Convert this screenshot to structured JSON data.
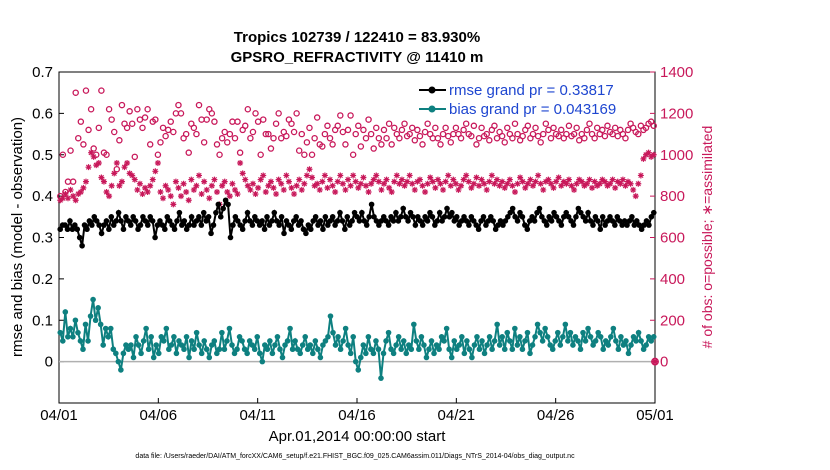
{
  "chart_data": {
    "type": "line",
    "title": "Tropics 102739 / 122410 = 83.930%",
    "subtitle": "GPSRO_REFRACTIVITY @ 11410 m",
    "xlabel": "Apr.01,2014 00:00:00 start",
    "ylabel": "rmse and bias (model - observation)",
    "y2label": "# of obs: o=possible; ∗=assimilated",
    "footer": "data file: /Users/raeder/DAI/ATM_forcXX/CAM6_setup/f.e21.FHIST_BGC.f09_025.CAM6assim.011/Diags_NTrS_2014-04/obs_diag_output.nc",
    "xlim": [
      0,
      30
    ],
    "ylim": [
      -0.1,
      0.7
    ],
    "y2lim": [
      -200,
      1400
    ],
    "xticks": [
      0,
      5,
      10,
      15,
      20,
      25,
      30
    ],
    "xticklabels": [
      "04/01",
      "04/06",
      "04/11",
      "04/16",
      "04/21",
      "04/26",
      "05/01"
    ],
    "yticks": [
      0,
      0.1,
      0.2,
      0.3,
      0.4,
      0.5,
      0.6,
      0.7
    ],
    "yticklabels": [
      "0",
      "0.1",
      "0.2",
      "0.3",
      "0.4",
      "0.5",
      "0.6",
      "0.7"
    ],
    "y2ticks": [
      0,
      200,
      400,
      600,
      800,
      1000,
      1200,
      1400
    ],
    "y2ticklabels": [
      "0",
      "200",
      "400",
      "600",
      "800",
      "1000",
      "1200",
      "1400"
    ],
    "zero_line": 0,
    "series": [
      {
        "name": "rmse grand pr = 0.33817",
        "axis": "left",
        "color": "#000000",
        "marker": "filled-circle",
        "values": [
          0.32,
          0.33,
          0.33,
          0.32,
          0.34,
          0.32,
          0.33,
          0.32,
          0.3,
          0.28,
          0.33,
          0.32,
          0.34,
          0.33,
          0.35,
          0.34,
          0.33,
          0.31,
          0.33,
          0.34,
          0.32,
          0.35,
          0.33,
          0.34,
          0.36,
          0.34,
          0.32,
          0.35,
          0.34,
          0.33,
          0.35,
          0.34,
          0.32,
          0.33,
          0.35,
          0.34,
          0.33,
          0.35,
          0.34,
          0.3,
          0.33,
          0.34,
          0.33,
          0.32,
          0.35,
          0.34,
          0.33,
          0.32,
          0.34,
          0.36,
          0.33,
          0.34,
          0.32,
          0.33,
          0.35,
          0.33,
          0.34,
          0.35,
          0.33,
          0.36,
          0.34,
          0.35,
          0.31,
          0.33,
          0.36,
          0.38,
          0.35,
          0.37,
          0.39,
          0.38,
          0.3,
          0.33,
          0.35,
          0.34,
          0.33,
          0.32,
          0.34,
          0.36,
          0.34,
          0.33,
          0.35,
          0.34,
          0.33,
          0.34,
          0.32,
          0.35,
          0.33,
          0.34,
          0.36,
          0.34,
          0.33,
          0.35,
          0.31,
          0.34,
          0.33,
          0.32,
          0.34,
          0.35,
          0.33,
          0.34,
          0.32,
          0.31,
          0.33,
          0.32,
          0.34,
          0.35,
          0.33,
          0.34,
          0.32,
          0.35,
          0.33,
          0.34,
          0.35,
          0.33,
          0.34,
          0.36,
          0.34,
          0.32,
          0.35,
          0.33,
          0.34,
          0.36,
          0.35,
          0.34,
          0.36,
          0.34,
          0.33,
          0.35,
          0.38,
          0.35,
          0.34,
          0.33,
          0.34,
          0.35,
          0.34,
          0.33,
          0.35,
          0.34,
          0.36,
          0.34,
          0.35,
          0.37,
          0.35,
          0.34,
          0.36,
          0.35,
          0.33,
          0.35,
          0.34,
          0.33,
          0.35,
          0.34,
          0.36,
          0.35,
          0.33,
          0.34,
          0.36,
          0.34,
          0.35,
          0.37,
          0.35,
          0.36,
          0.34,
          0.35,
          0.33,
          0.34,
          0.35,
          0.34,
          0.33,
          0.35,
          0.34,
          0.33,
          0.32,
          0.34,
          0.35,
          0.33,
          0.34,
          0.35,
          0.34,
          0.32,
          0.33,
          0.34,
          0.33,
          0.34,
          0.35,
          0.36,
          0.37,
          0.35,
          0.34,
          0.36,
          0.35,
          0.33,
          0.32,
          0.34,
          0.35,
          0.34,
          0.36,
          0.37,
          0.35,
          0.34,
          0.33,
          0.35,
          0.34,
          0.36,
          0.35,
          0.34,
          0.33,
          0.35,
          0.36,
          0.35,
          0.34,
          0.33,
          0.35,
          0.37,
          0.36,
          0.35,
          0.34,
          0.36,
          0.34,
          0.33,
          0.35,
          0.34,
          0.32,
          0.35,
          0.33,
          0.34,
          0.35,
          0.34,
          0.33,
          0.35,
          0.34,
          0.33,
          0.34,
          0.33,
          0.34,
          0.35,
          0.33,
          0.34,
          0.33,
          0.32,
          0.33,
          0.34,
          0.33,
          0.35,
          0.36
        ]
      },
      {
        "name": "bias grand pr = 0.043169",
        "axis": "left",
        "color": "#0e8080",
        "marker": "filled-circle",
        "values": [
          0.07,
          0.05,
          0.12,
          0.06,
          0.08,
          0.06,
          0.1,
          0.07,
          0.05,
          0.03,
          0.09,
          0.05,
          0.11,
          0.15,
          0.1,
          0.13,
          0.09,
          0.04,
          0.08,
          0.06,
          0.08,
          0.03,
          0.02,
          0.0,
          -0.02,
          0.02,
          0.04,
          0.03,
          0.04,
          0.01,
          0.06,
          0.04,
          0.02,
          0.05,
          0.08,
          0.03,
          0.06,
          0.01,
          0.04,
          0.02,
          0.06,
          0.05,
          0.08,
          0.03,
          0.04,
          0.06,
          0.02,
          0.05,
          0.04,
          0.03,
          0.06,
          0.01,
          0.05,
          0.03,
          0.07,
          0.04,
          0.02,
          0.05,
          0.03,
          0.01,
          0.04,
          0.05,
          0.02,
          0.03,
          0.07,
          0.03,
          0.05,
          0.08,
          0.04,
          0.02,
          0.03,
          0.06,
          0.05,
          0.03,
          0.02,
          0.05,
          0.04,
          0.03,
          0.06,
          0.02,
          0.0,
          0.04,
          0.03,
          0.05,
          0.02,
          0.04,
          0.06,
          0.03,
          0.01,
          0.04,
          0.05,
          0.08,
          0.03,
          0.05,
          0.03,
          0.02,
          0.04,
          0.06,
          0.03,
          0.04,
          0.02,
          0.05,
          0.03,
          0.01,
          0.04,
          0.05,
          0.06,
          0.11,
          0.07,
          0.04,
          0.06,
          0.03,
          0.05,
          0.08,
          0.04,
          0.02,
          0.06,
          0.0,
          -0.02,
          0.01,
          0.04,
          0.02,
          0.06,
          0.03,
          0.02,
          0.05,
          0.03,
          -0.04,
          0.02,
          0.05,
          0.07,
          0.03,
          0.02,
          0.04,
          0.06,
          0.03,
          0.05,
          0.02,
          0.04,
          0.03,
          0.09,
          0.05,
          0.03,
          0.06,
          0.04,
          0.01,
          0.03,
          0.05,
          0.02,
          0.04,
          0.03,
          0.06,
          0.05,
          0.08,
          0.03,
          0.01,
          0.05,
          0.03,
          0.04,
          0.06,
          0.02,
          0.05,
          0.03,
          0.01,
          0.04,
          0.06,
          0.03,
          0.05,
          0.02,
          0.04,
          0.06,
          0.03,
          0.05,
          0.09,
          0.04,
          0.06,
          0.03,
          0.07,
          0.05,
          0.03,
          0.08,
          0.04,
          0.06,
          0.03,
          0.05,
          0.07,
          0.02,
          0.04,
          0.06,
          0.09,
          0.07,
          0.05,
          0.08,
          0.06,
          0.04,
          0.03,
          0.05,
          0.07,
          0.04,
          0.06,
          0.09,
          0.05,
          0.07,
          0.04,
          0.06,
          0.05,
          0.03,
          0.07,
          0.05,
          0.08,
          0.06,
          0.04,
          0.05,
          0.07,
          0.06,
          0.03,
          0.05,
          0.04,
          0.06,
          0.08,
          0.05,
          0.03,
          0.06,
          0.04,
          0.05,
          0.02,
          0.04,
          0.06,
          0.05,
          0.07,
          0.05,
          0.03,
          0.04,
          0.06,
          0.05,
          0.06
        ]
      },
      {
        "name": "possible obs",
        "axis": "right",
        "color": "#c8185a",
        "marker": "open-circle",
        "values": [
          800,
          1000,
          820,
          870,
          1020,
          870,
          1300,
          1080,
          1160,
          1050,
          1310,
          1120,
          1220,
          1030,
          1000,
          1130,
          1310,
          1010,
          1000,
          1220,
          1170,
          1110,
          930,
          1070,
          1240,
          1150,
          1130,
          1210,
          1150,
          990,
          1220,
          1170,
          1130,
          1180,
          1220,
          1050,
          1160,
          1170,
          1000,
          1060,
          1130,
          1090,
          1120,
          1160,
          1110,
          1200,
          1240,
          1200,
          1080,
          1100,
          1010,
          1150,
          1130,
          1100,
          1240,
          1170,
          1060,
          1170,
          1220,
          1200,
          1160,
          1050,
          1000,
          1080,
          1110,
          1060,
          1100,
          1160,
          1080,
          1160,
          1010,
          1120,
          1140,
          1220,
          1080,
          1110,
          1200,
          1160,
          1000,
          1170,
          1100,
          1100,
          1030,
          1080,
          1150,
          1200,
          1080,
          1110,
          1090,
          1170,
          1150,
          1110,
          1200,
          1020,
          1100,
          1000,
          1060,
          1130,
          1000,
          1080,
          1180,
          1050,
          1040,
          1100,
          1140,
          1080,
          1050,
          1120,
          1140,
          1190,
          1110,
          1050,
          1120,
          1190,
          1000,
          1100,
          1140,
          1040,
          1120,
          1080,
          1170,
          1100,
          1030,
          1130,
          1080,
          1050,
          1120,
          1080,
          1150,
          1050,
          1130,
          1100,
          1080,
          1120,
          1150,
          1090,
          1100,
          1130,
          1070,
          1120,
          1090,
          1050,
          1110,
          1150,
          1100,
          1080,
          1130,
          1080,
          1050,
          1100,
          1130,
          1090,
          1060,
          1100,
          1130,
          1100,
          1080,
          1120,
          1150,
          1100,
          1090,
          1140,
          1050,
          1080,
          1130,
          1090,
          1100,
          1070,
          1120,
          1140,
          1080,
          1110,
          1090,
          1060,
          1130,
          1100,
          1080,
          1150,
          1100,
          1070,
          1090,
          1120,
          1140,
          1080,
          1100,
          1130,
          1090,
          1060,
          1100,
          1150,
          1120,
          1080,
          1130,
          1100,
          1090,
          1120,
          1080,
          1100,
          1140,
          1090,
          1100,
          1130,
          1070,
          1100,
          1080,
          1120,
          1150,
          1100,
          1080,
          1130,
          1100,
          1120,
          1090,
          1140,
          1110,
          1100,
          1130,
          1090,
          1120,
          1100,
          1080,
          1120,
          1150,
          1130,
          1110,
          1100,
          1140,
          1120,
          1130,
          1150,
          1160,
          1140
        ]
      },
      {
        "name": "assimilated obs",
        "axis": "right",
        "color": "#c8185a",
        "marker": "asterisk",
        "values": [
          780,
          790,
          810,
          790,
          830,
          800,
          780,
          810,
          820,
          840,
          870,
          940,
          1010,
          990,
          950,
          960,
          890,
          870,
          820,
          800,
          850,
          910,
          960,
          850,
          870,
          940,
          960,
          910,
          900,
          880,
          830,
          860,
          810,
          840,
          820,
          850,
          880,
          920,
          960,
          820,
          790,
          850,
          830,
          800,
          760,
          870,
          840,
          800,
          860,
          820,
          780,
          880,
          830,
          850,
          900,
          810,
          870,
          830,
          790,
          850,
          880,
          820,
          760,
          850,
          870,
          820,
          800,
          860,
          830,
          810,
          960,
          910,
          880,
          850,
          830,
          860,
          810,
          840,
          880,
          900,
          820,
          850,
          870,
          840,
          810,
          880,
          860,
          830,
          900,
          870,
          840,
          810,
          850,
          880,
          830,
          860,
          900,
          930,
          890,
          850,
          860,
          830,
          870,
          900,
          840,
          880,
          850,
          820,
          870,
          900,
          860,
          830,
          880,
          850,
          900,
          870,
          840,
          860,
          890,
          850,
          820,
          860,
          880,
          900,
          870,
          830,
          860,
          880,
          840,
          820,
          870,
          900,
          860,
          880,
          850,
          870,
          900,
          860,
          830,
          870,
          880,
          850,
          820,
          860,
          890,
          870,
          840,
          880,
          860,
          830,
          870,
          900,
          850,
          880,
          860,
          830,
          850,
          880,
          900,
          870,
          840,
          860,
          890,
          850,
          880,
          860,
          830,
          870,
          900,
          860,
          880,
          850,
          870,
          840,
          860,
          880,
          850,
          820,
          860,
          890,
          870,
          840,
          860,
          880,
          850,
          870,
          900,
          860,
          830,
          870,
          880,
          860,
          840,
          870,
          890,
          850,
          870,
          860,
          880,
          850,
          830,
          860,
          880,
          870,
          850,
          860,
          880,
          840,
          870,
          850,
          860,
          880,
          870,
          850,
          860,
          880,
          840,
          870,
          860,
          880,
          850,
          870,
          860,
          830,
          800,
          860,
          900,
          980,
          1000,
          1010,
          990,
          1000
        ]
      }
    ],
    "legend": [
      {
        "label": "rmse grand pr = 0.33817",
        "color": "#000000"
      },
      {
        "label": "bias grand pr = 0.043169",
        "color": "#0e8080"
      }
    ],
    "end_marker": {
      "x": 30,
      "y2": 0,
      "color": "#c8185a"
    }
  }
}
